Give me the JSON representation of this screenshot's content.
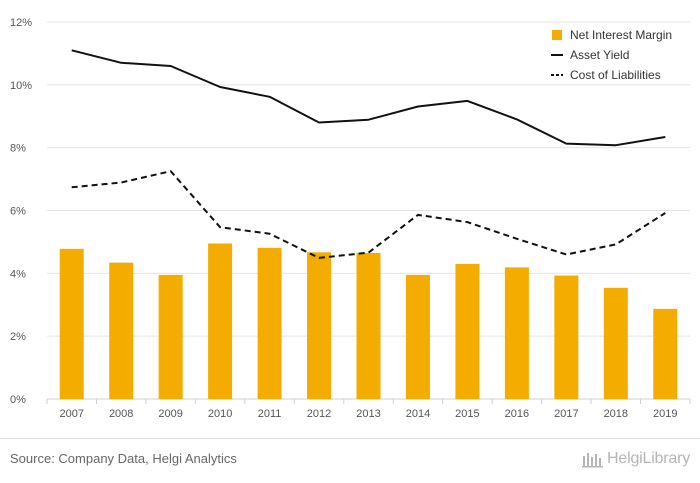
{
  "chart_data": {
    "type": "bar",
    "categories": [
      "2007",
      "2008",
      "2009",
      "2010",
      "2011",
      "2012",
      "2013",
      "2014",
      "2015",
      "2016",
      "2017",
      "2018",
      "2019"
    ],
    "series": [
      {
        "name": "Net Interest Margin",
        "kind": "bar",
        "color": "#f5ac00",
        "values": [
          4.78,
          4.34,
          3.95,
          4.95,
          4.81,
          4.67,
          4.65,
          3.95,
          4.3,
          4.19,
          3.93,
          3.54,
          2.87
        ]
      },
      {
        "name": "Asset Yield",
        "kind": "line",
        "style": "solid",
        "color": "#111111",
        "values": [
          11.1,
          10.7,
          10.6,
          9.93,
          9.62,
          8.8,
          8.89,
          9.31,
          9.49,
          8.9,
          8.13,
          8.08,
          8.34
        ]
      },
      {
        "name": "Cost of Liabilities",
        "kind": "line",
        "style": "dashed",
        "color": "#111111",
        "values": [
          6.74,
          6.89,
          7.25,
          5.47,
          5.26,
          4.49,
          4.66,
          5.86,
          5.63,
          5.1,
          4.6,
          4.92,
          5.92
        ]
      }
    ],
    "yticks": [
      "0%",
      "2%",
      "4%",
      "6%",
      "8%",
      "10%",
      "12%"
    ],
    "ylim": [
      0,
      12
    ],
    "grid": true,
    "legend_position": "top-right"
  },
  "footer": {
    "source": "Source: Company Data, Helgi Analytics",
    "brand": "HelgiLibrary"
  }
}
